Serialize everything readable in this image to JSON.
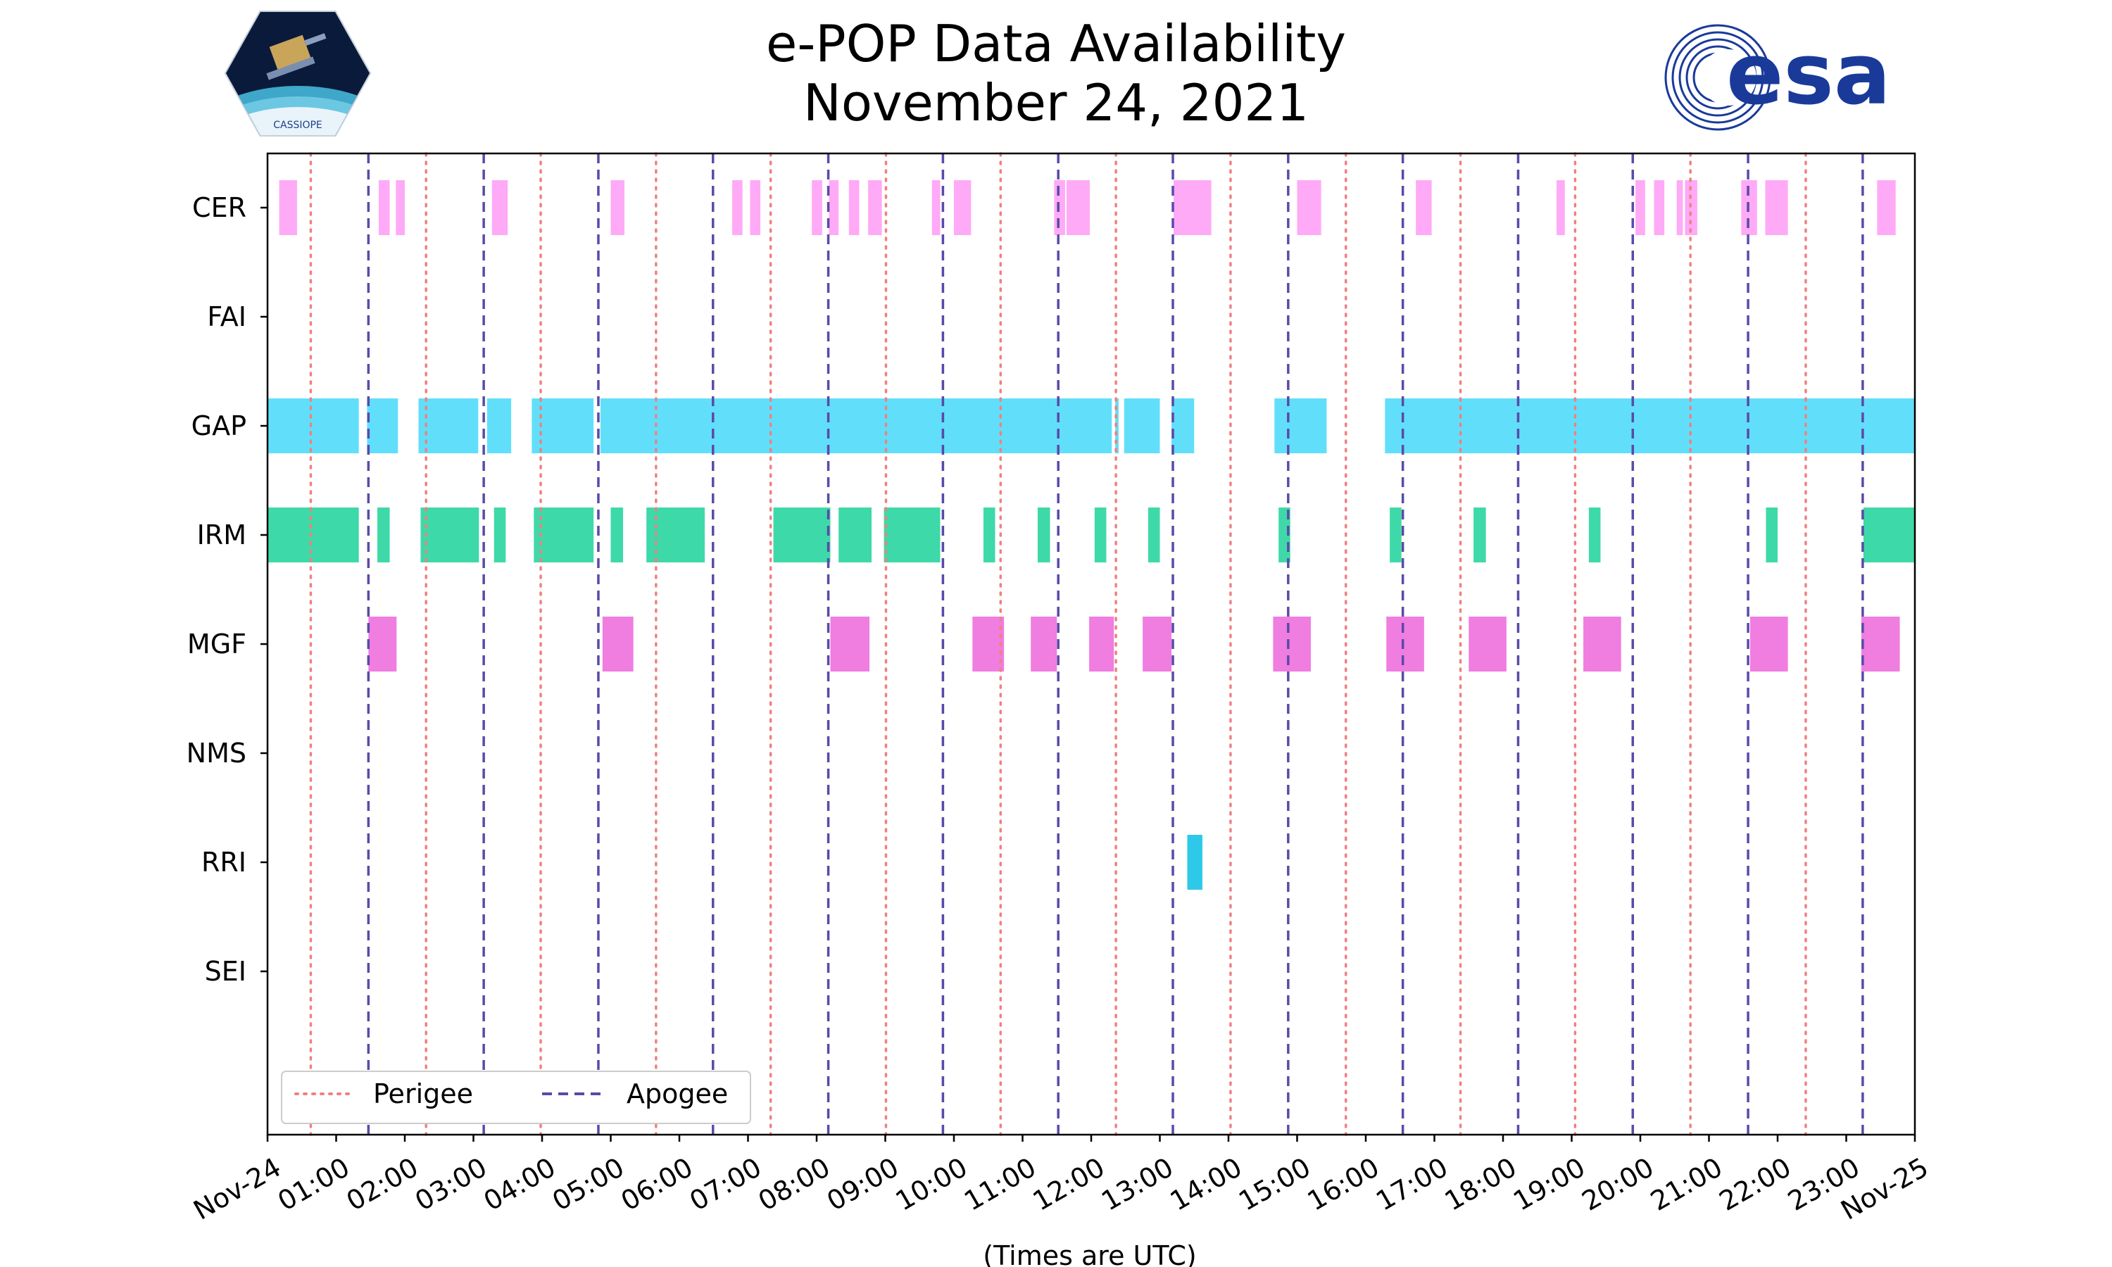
{
  "title": {
    "line1": "e-POP Data Availability",
    "line2": "November 24, 2021"
  },
  "logos": {
    "left_caption": "CASSIOPE",
    "right_text": "esa"
  },
  "colors": {
    "perigee": "#f08080",
    "apogee": "#5a4aa8",
    "CER": "#ffaaf6",
    "GAP": "#61dffa",
    "IRM": "#3ed9a8",
    "MGF": "#f07de0",
    "RRI": "#2ec9e8"
  },
  "chart_data": {
    "type": "timeline",
    "title": "e-POP Data Availability November 24, 2021",
    "xlabel": "(Times are UTC)",
    "xlim_hours": [
      0,
      24
    ],
    "xtick_labels": [
      "Nov-24",
      "01:00",
      "02:00",
      "03:00",
      "04:00",
      "05:00",
      "06:00",
      "07:00",
      "08:00",
      "09:00",
      "10:00",
      "11:00",
      "12:00",
      "13:00",
      "14:00",
      "15:00",
      "16:00",
      "17:00",
      "18:00",
      "19:00",
      "20:00",
      "21:00",
      "22:00",
      "23:00",
      "Nov-25"
    ],
    "instruments": [
      "CER",
      "FAI",
      "GAP",
      "IRM",
      "MGF",
      "NMS",
      "RRI",
      "SEI"
    ],
    "perigee_hours": [
      0.63,
      2.31,
      3.98,
      5.66,
      7.33,
      9.01,
      10.68,
      12.36,
      14.03,
      15.71,
      17.38,
      19.05,
      20.73,
      22.41
    ],
    "apogee_hours": [
      1.47,
      3.15,
      4.82,
      6.49,
      8.17,
      9.84,
      11.52,
      13.19,
      14.87,
      16.54,
      18.22,
      19.89,
      21.57,
      23.24
    ],
    "legend": {
      "perigee": "Perigee",
      "apogee": "Apogee",
      "location": "lower-left"
    },
    "intervals": {
      "CER": [
        [
          0.17,
          0.43
        ],
        [
          1.62,
          1.78
        ],
        [
          1.87,
          2.0
        ],
        [
          3.27,
          3.5
        ],
        [
          5.0,
          5.2
        ],
        [
          6.77,
          6.92
        ],
        [
          7.03,
          7.18
        ],
        [
          7.93,
          8.08
        ],
        [
          8.18,
          8.32
        ],
        [
          8.47,
          8.62
        ],
        [
          8.75,
          8.95
        ],
        [
          9.68,
          9.8
        ],
        [
          10.0,
          10.25
        ],
        [
          11.46,
          11.62
        ],
        [
          11.64,
          11.98
        ],
        [
          13.2,
          13.75
        ],
        [
          15.0,
          15.35
        ],
        [
          16.73,
          16.96
        ],
        [
          18.78,
          18.9
        ],
        [
          19.93,
          20.07
        ],
        [
          20.2,
          20.35
        ],
        [
          20.53,
          20.62
        ],
        [
          20.65,
          20.83
        ],
        [
          21.47,
          21.7
        ],
        [
          21.82,
          22.15
        ],
        [
          23.45,
          23.72
        ]
      ],
      "FAI": [],
      "GAP": [
        [
          0.0,
          1.33
        ],
        [
          1.45,
          1.9
        ],
        [
          2.2,
          3.07
        ],
        [
          3.2,
          3.55
        ],
        [
          3.85,
          4.75
        ],
        [
          4.85,
          12.3
        ],
        [
          12.35,
          12.4
        ],
        [
          12.48,
          13.0
        ],
        [
          13.17,
          13.5
        ],
        [
          14.67,
          15.43
        ],
        [
          16.28,
          24.0
        ]
      ],
      "IRM": [
        [
          0.0,
          1.33
        ],
        [
          1.6,
          1.78
        ],
        [
          2.23,
          3.08
        ],
        [
          3.3,
          3.47
        ],
        [
          3.88,
          4.75
        ],
        [
          5.0,
          5.18
        ],
        [
          5.52,
          6.37
        ],
        [
          7.37,
          8.2
        ],
        [
          8.32,
          8.8
        ],
        [
          8.98,
          9.8
        ],
        [
          10.43,
          10.6
        ],
        [
          11.22,
          11.4
        ],
        [
          12.05,
          12.22
        ],
        [
          12.83,
          13.0
        ],
        [
          14.73,
          14.9
        ],
        [
          16.35,
          16.52
        ],
        [
          17.57,
          17.75
        ],
        [
          19.25,
          19.42
        ],
        [
          21.83,
          22.0
        ],
        [
          23.25,
          24.0
        ]
      ],
      "MGF": [
        [
          1.47,
          1.88
        ],
        [
          4.88,
          5.33
        ],
        [
          8.2,
          8.77
        ],
        [
          10.27,
          10.73
        ],
        [
          11.12,
          11.5
        ],
        [
          11.97,
          12.33
        ],
        [
          12.75,
          13.17
        ],
        [
          14.65,
          15.2
        ],
        [
          16.3,
          16.85
        ],
        [
          17.5,
          18.05
        ],
        [
          19.17,
          19.72
        ],
        [
          21.6,
          22.15
        ],
        [
          23.22,
          23.78
        ]
      ],
      "NMS": [],
      "RRI": [
        [
          13.4,
          13.62
        ]
      ],
      "SEI": []
    }
  }
}
